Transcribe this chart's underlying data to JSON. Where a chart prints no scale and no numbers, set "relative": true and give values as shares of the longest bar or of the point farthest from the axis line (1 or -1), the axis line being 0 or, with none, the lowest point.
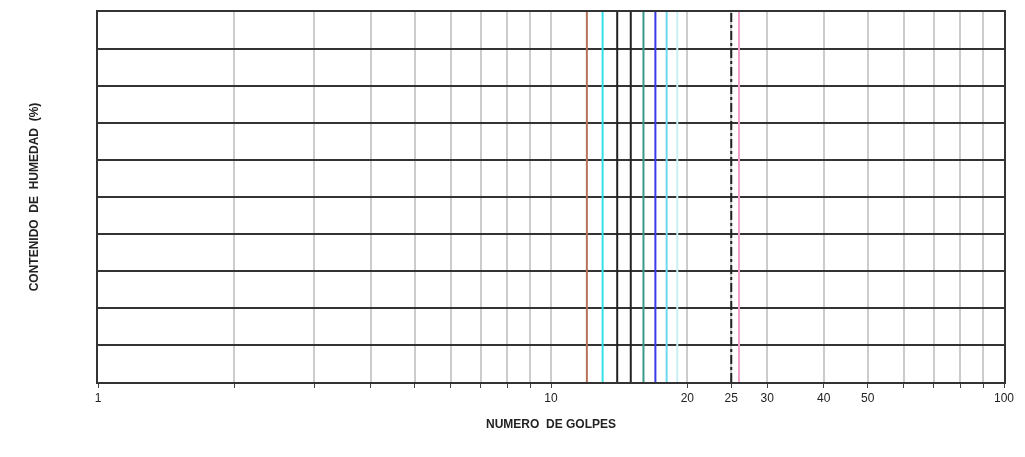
{
  "chart_data": {
    "type": "line",
    "xlabel": "NUMERO  DE GOLPES",
    "ylabel": "CONTENIDO  DE  HUMEDAD  (%)",
    "relative": true,
    "series": [
      {
        "color": "#b5735a",
        "x": [
          12,
          12
        ],
        "values": [
          0,
          1
        ]
      },
      {
        "color": "#33e0e8",
        "x": [
          13,
          13
        ],
        "values": [
          0,
          1
        ]
      },
      {
        "color": "#222222",
        "x": [
          14,
          14
        ],
        "values": [
          0,
          1
        ]
      },
      {
        "color": "#222222",
        "x": [
          15,
          15
        ],
        "values": [
          0,
          1
        ]
      },
      {
        "color": "#3a9a8a",
        "x": [
          16,
          16
        ],
        "values": [
          0,
          1
        ]
      },
      {
        "color": "#3a3ae8",
        "x": [
          17,
          17
        ],
        "values": [
          0,
          1
        ]
      },
      {
        "color": "#6ad8f0",
        "x": [
          18,
          18
        ],
        "values": [
          0,
          1
        ]
      },
      {
        "color": "#c8f0f4",
        "x": [
          19,
          19
        ],
        "values": [
          0,
          1
        ]
      },
      {
        "color": "#222222",
        "x": [
          25,
          25
        ],
        "values": [
          0,
          1
        ],
        "line_style": "dashed"
      },
      {
        "color": "#f2a0c8",
        "x": [
          26,
          26
        ],
        "values": [
          0,
          1
        ]
      }
    ],
    "log": "x",
    "xlim": [
      1,
      100
    ],
    "xticks": [
      1,
      {
        "value": 2,
        "label": null
      },
      {
        "value": 3,
        "label": null
      },
      {
        "value": 4,
        "label": null
      },
      {
        "value": 5,
        "label": null
      },
      {
        "value": 6,
        "label": null
      },
      {
        "value": 7,
        "label": null
      },
      {
        "value": 8,
        "label": null
      },
      {
        "value": 9,
        "label": null
      },
      10,
      20,
      25,
      30,
      40,
      50,
      {
        "value": 60,
        "label": null
      },
      {
        "value": 70,
        "label": null
      },
      {
        "value": 80,
        "label": null
      },
      {
        "value": 90,
        "label": null
      },
      100
    ],
    "grid": true,
    "tick_labels": "x"
  }
}
